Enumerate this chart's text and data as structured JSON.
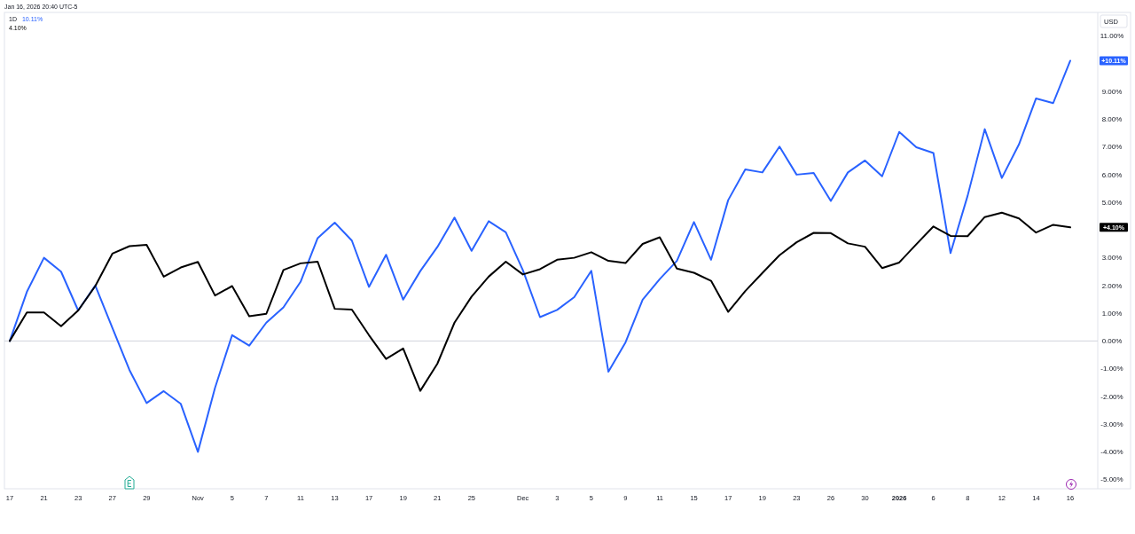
{
  "chart_data": {
    "type": "line",
    "ylabel": "USD",
    "categories": [
      "17",
      null,
      "21",
      null,
      "23",
      null,
      "27",
      null,
      "29",
      null,
      null,
      "Nov",
      null,
      "5",
      null,
      "7",
      null,
      "11",
      null,
      "13",
      null,
      "17",
      null,
      "19",
      null,
      "21",
      null,
      "25",
      null,
      null,
      "Dec",
      null,
      "3",
      null,
      "5",
      null,
      "9",
      null,
      "11",
      null,
      "15",
      null,
      "17",
      null,
      "19",
      null,
      "23",
      null,
      "26",
      null,
      "30",
      null,
      "2026",
      null,
      "6",
      null,
      "8",
      null,
      "12",
      null,
      "14",
      null,
      "16"
    ],
    "series": [
      {
        "color": "#2962ff",
        "values": [
          0.0,
          1.77,
          3.0,
          2.5,
          1.1,
          2.0,
          0.47,
          -1.05,
          -2.24,
          -1.81,
          -2.27,
          -4.0,
          -1.69,
          0.21,
          -0.17,
          0.66,
          1.21,
          2.13,
          3.71,
          4.27,
          3.62,
          1.95,
          3.11,
          1.49,
          2.52,
          3.39,
          4.45,
          3.25,
          4.32,
          3.92,
          2.55,
          0.86,
          1.12,
          1.58,
          2.53,
          -1.11,
          -0.05,
          1.49,
          2.23,
          2.89,
          4.29,
          2.93,
          5.08,
          6.19,
          6.08,
          7.01,
          6.0,
          6.06,
          5.05,
          6.08,
          6.51,
          5.94,
          7.54,
          6.99,
          6.78,
          3.17,
          5.24,
          7.64,
          5.88,
          7.09,
          8.75,
          8.58,
          10.11
        ]
      },
      {
        "color": "#000000",
        "values": [
          0.0,
          1.03,
          1.03,
          0.53,
          1.1,
          1.98,
          3.15,
          3.42,
          3.47,
          2.32,
          2.65,
          2.85,
          1.64,
          1.98,
          0.89,
          0.98,
          2.56,
          2.8,
          2.86,
          1.16,
          1.13,
          0.21,
          -0.65,
          -0.27,
          -1.8,
          -0.82,
          0.66,
          1.6,
          2.32,
          2.86,
          2.4,
          2.59,
          2.93,
          3.0,
          3.2,
          2.89,
          2.81,
          3.5,
          3.74,
          2.61,
          2.46,
          2.17,
          1.05,
          1.8,
          2.45,
          3.09,
          3.56,
          3.9,
          3.89,
          3.52,
          3.4,
          2.63,
          2.83,
          3.49,
          4.13,
          3.79,
          3.78,
          4.47,
          4.63,
          4.42,
          3.91,
          4.19,
          4.1
        ]
      }
    ],
    "ylim": [
      -5.3,
      11.82
    ],
    "yticks": [
      {
        "value": -5,
        "label": "-5.00%"
      },
      {
        "value": -4,
        "label": "-4.00%"
      },
      {
        "value": -3,
        "label": "-3.00%"
      },
      {
        "value": -2,
        "label": "-2.00%"
      },
      {
        "value": -1,
        "label": "-1.00%"
      },
      {
        "value": 0,
        "label": "0.00%"
      },
      {
        "value": 1,
        "label": "1.00%"
      },
      {
        "value": 2,
        "label": "2.00%"
      },
      {
        "value": 3,
        "label": "3.00%"
      },
      {
        "value": 5,
        "label": "5.00%"
      },
      {
        "value": 6,
        "label": "6.00%"
      },
      {
        "value": 7,
        "label": "7.00%"
      },
      {
        "value": 8,
        "label": "8.00%"
      },
      {
        "value": 9,
        "label": "9.00%"
      },
      {
        "value": 11,
        "label": "11.00%"
      }
    ],
    "ref_lines": [
      {
        "axis": "y",
        "value": 0,
        "color": "#d1d4dc"
      }
    ],
    "annotations": [
      "Jan 16, 2026 20:40 UTC-5",
      "1D",
      "10.11%",
      "4.10%",
      "+10.11%",
      "+4.10%"
    ]
  }
}
